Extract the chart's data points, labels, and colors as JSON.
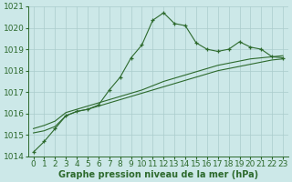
{
  "xlabel": "Graphe pression niveau de la mer (hPa)",
  "x_hours": [
    0,
    1,
    2,
    3,
    4,
    5,
    6,
    7,
    8,
    9,
    10,
    11,
    12,
    13,
    14,
    15,
    16,
    17,
    18,
    19,
    20,
    21,
    22,
    23
  ],
  "line_main": [
    1014.2,
    1014.7,
    1015.3,
    1015.9,
    1016.1,
    1016.2,
    1016.4,
    1017.1,
    1017.7,
    1018.6,
    1019.2,
    1020.35,
    1020.7,
    1020.2,
    1020.1,
    1019.3,
    1019.0,
    1018.9,
    1019.0,
    1019.35,
    1019.1,
    1019.0,
    1018.65,
    1018.6
  ],
  "line_low": [
    1015.1,
    1015.2,
    1015.4,
    1015.9,
    1016.1,
    1016.2,
    1016.35,
    1016.5,
    1016.65,
    1016.8,
    1016.95,
    1017.1,
    1017.25,
    1017.4,
    1017.55,
    1017.7,
    1017.85,
    1018.0,
    1018.1,
    1018.2,
    1018.3,
    1018.4,
    1018.5,
    1018.55
  ],
  "line_high": [
    1015.3,
    1015.45,
    1015.65,
    1016.05,
    1016.2,
    1016.35,
    1016.5,
    1016.65,
    1016.8,
    1016.95,
    1017.1,
    1017.3,
    1017.5,
    1017.65,
    1017.8,
    1017.95,
    1018.1,
    1018.25,
    1018.35,
    1018.45,
    1018.55,
    1018.6,
    1018.65,
    1018.7
  ],
  "line_color": "#2d6a2d",
  "bg_color": "#cce8e8",
  "grid_color": "#aacccc",
  "ylim": [
    1014,
    1021
  ],
  "yticks": [
    1014,
    1015,
    1016,
    1017,
    1018,
    1019,
    1020,
    1021
  ],
  "xticks": [
    0,
    1,
    2,
    3,
    4,
    5,
    6,
    7,
    8,
    9,
    10,
    11,
    12,
    13,
    14,
    15,
    16,
    17,
    18,
    19,
    20,
    21,
    22,
    23
  ],
  "xlabel_fontsize": 7,
  "tick_fontsize": 6.5
}
